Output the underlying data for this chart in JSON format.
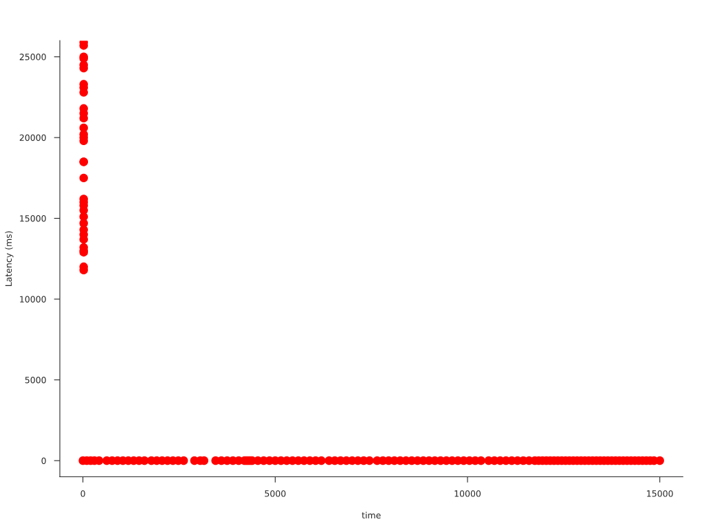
{
  "chart_data": {
    "type": "scatter",
    "xlabel": "time",
    "ylabel": "Latency (ms)",
    "xlim": [
      -600,
      15600
    ],
    "ylim": [
      -1000,
      26000
    ],
    "xticks": [
      0,
      5000,
      10000,
      15000
    ],
    "yticks": [
      0,
      5000,
      10000,
      15000,
      20000,
      25000
    ],
    "grid": false,
    "legend": false,
    "marker": "circle",
    "series": [
      {
        "color": "#ff0000",
        "x": [
          20,
          20,
          20,
          20,
          20,
          20,
          20,
          20,
          20,
          20,
          20,
          20,
          20,
          20,
          20,
          20,
          20,
          20,
          20,
          20,
          20,
          20,
          20,
          20,
          20,
          20,
          20,
          20,
          20,
          20,
          20,
          20,
          20,
          0,
          100,
          200,
          300,
          420,
          620,
          760,
          900,
          1040,
          1180,
          1320,
          1460,
          1600,
          1780,
          1920,
          2060,
          2200,
          2340,
          2480,
          2620,
          2900,
          3050,
          3150,
          3450,
          3600,
          3750,
          3900,
          4050,
          4200,
          4250,
          4300,
          4350,
          4400,
          4550,
          4700,
          4850,
          5000,
          5150,
          5300,
          5450,
          5600,
          5750,
          5900,
          6050,
          6200,
          6400,
          6550,
          6700,
          6850,
          7000,
          7150,
          7300,
          7450,
          7650,
          7800,
          7950,
          8100,
          8250,
          8400,
          8550,
          8700,
          8850,
          9000,
          9150,
          9300,
          9450,
          9600,
          9750,
          9900,
          10050,
          10200,
          10350,
          10550,
          10700,
          10850,
          11000,
          11150,
          11300,
          11450,
          11600,
          11750,
          11850,
          11950,
          12050,
          12150,
          12250,
          12350,
          12450,
          12550,
          12650,
          12750,
          12850,
          12950,
          13050,
          13150,
          13250,
          13350,
          13450,
          13550,
          13650,
          13750,
          13850,
          13950,
          14050,
          14150,
          14250,
          14350,
          14450,
          14550,
          14650,
          14750,
          14850,
          15000
        ],
        "values": [
          25900,
          25700,
          25000,
          24900,
          24500,
          24300,
          23300,
          23100,
          22800,
          21800,
          21500,
          21200,
          20600,
          20200,
          20000,
          19800,
          18500,
          18500,
          17500,
          16200,
          16000,
          15800,
          15500,
          15100,
          14700,
          14300,
          14000,
          13700,
          13200,
          13000,
          12900,
          12000,
          11800,
          0,
          0,
          0,
          0,
          0,
          0,
          0,
          0,
          0,
          0,
          0,
          0,
          0,
          0,
          0,
          0,
          0,
          0,
          0,
          0,
          0,
          0,
          0,
          0,
          0,
          0,
          0,
          0,
          0,
          0,
          0,
          0,
          0,
          0,
          0,
          0,
          0,
          0,
          0,
          0,
          0,
          0,
          0,
          0,
          0,
          0,
          0,
          0,
          0,
          0,
          0,
          0,
          0,
          0,
          0,
          0,
          0,
          0,
          0,
          0,
          0,
          0,
          0,
          0,
          0,
          0,
          0,
          0,
          0,
          0,
          0,
          0,
          0,
          0,
          0,
          0,
          0,
          0,
          0,
          0,
          0,
          0,
          0,
          0,
          0,
          0,
          0,
          0,
          0,
          0,
          0,
          0,
          0,
          0,
          0,
          0,
          0,
          0,
          0,
          0,
          0,
          0,
          0,
          0,
          0,
          0,
          0,
          0,
          0,
          0,
          0,
          0,
          0
        ]
      }
    ]
  }
}
